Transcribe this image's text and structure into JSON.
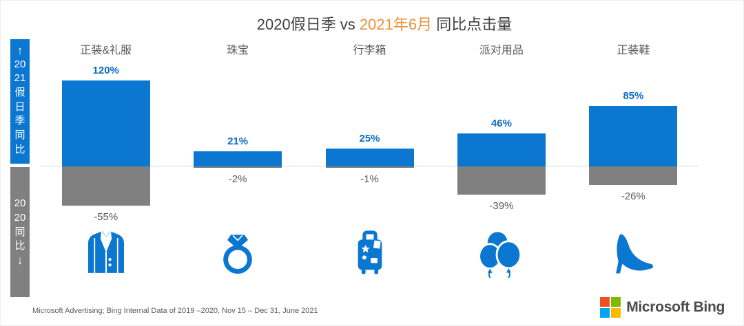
{
  "title": {
    "part1": "2020假日季 vs ",
    "highlight": "2021年6月",
    "part2": " 同比点击量",
    "highlight_color": "#F0913A"
  },
  "sidebar": {
    "top": {
      "arrow": "↑",
      "label": "2021假日季同比",
      "lines": [
        "20",
        "21",
        "假",
        "日",
        "季",
        "同",
        "比"
      ],
      "color": "#0B77D1"
    },
    "bottom": {
      "arrow": "↓",
      "label": "2020同比",
      "lines": [
        "20",
        "20",
        "同",
        "比"
      ],
      "color": "#808080"
    }
  },
  "chart_data": {
    "type": "bar",
    "title": "2020假日季 vs 2021年6月 同比点击量",
    "categories": [
      "正装&礼服",
      "珠宝",
      "行李箱",
      "派对用品",
      "正装鞋"
    ],
    "series": [
      {
        "name": "2021假日季同比",
        "values": [
          120,
          21,
          25,
          46,
          85
        ],
        "color": "#0B77D1"
      },
      {
        "name": "2020同比",
        "values": [
          -55,
          -2,
          -1,
          -39,
          -26
        ],
        "color": "#808080"
      }
    ],
    "labels_up": [
      "120%",
      "21%",
      "25%",
      "46%",
      "85%"
    ],
    "labels_down": [
      "-55%",
      "-2%",
      "-1%",
      "-39%",
      "-26%"
    ],
    "icons": [
      "suit-jacket-icon",
      "ring-icon",
      "luggage-icon",
      "balloons-icon",
      "high-heel-icon"
    ],
    "unit": "%",
    "baseline": 0,
    "grid": "off",
    "axis_line_color": "#D9D9D9"
  },
  "footer": {
    "source": "Microsoft Advertising; Bing Internal Data of 2019 –2020, Nov 15 – Dec 31, June 2021"
  },
  "branding": {
    "name": "Microsoft Bing",
    "logo_colors": {
      "top_left": "#F25022",
      "top_right": "#7FBA00",
      "bottom_left": "#00A4EF",
      "bottom_right": "#FFB900"
    }
  }
}
